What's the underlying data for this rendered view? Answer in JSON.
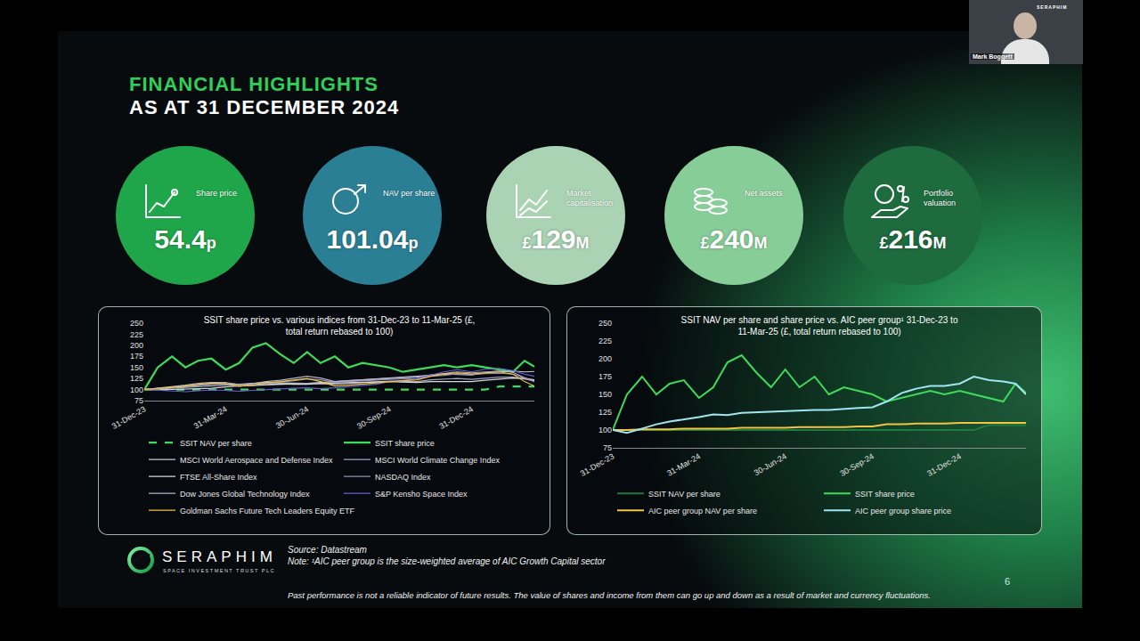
{
  "presenter": {
    "name": "Mark Boggett",
    "logo": "SERAPHIM"
  },
  "header": {
    "title": "FINANCIAL HIGHLIGHTS",
    "subtitle": "AS AT 31 DECEMBER 2024"
  },
  "kpis": [
    {
      "label": "Share price",
      "value": 54.4,
      "suffix": "p",
      "color": "#1fa64a"
    },
    {
      "label": "NAV per share",
      "value": 101.04,
      "suffix": "p",
      "color": "#2a7f95"
    },
    {
      "label": "Market capitalisation",
      "value": 129,
      "prefix": "£",
      "suffix": "M",
      "color": "#a9d3b3"
    },
    {
      "label": "Net assets",
      "value": 240,
      "prefix": "£",
      "suffix": "M",
      "color": "#86cd98"
    },
    {
      "label": "Portfolio valuation",
      "value": 216,
      "prefix": "£",
      "suffix": "M",
      "color": "#1e6b3e"
    }
  ],
  "chart_data": [
    {
      "type": "line",
      "title": "SSIT share price vs. various indices from 31-Dec-23 to 11-Mar-25 (£, total return rebased to 100)",
      "x": [
        "2023-12-31",
        "2024-01-15",
        "2024-01-31",
        "2024-02-15",
        "2024-02-29",
        "2024-03-15",
        "2024-03-31",
        "2024-04-15",
        "2024-04-30",
        "2024-05-15",
        "2024-05-31",
        "2024-06-15",
        "2024-06-30",
        "2024-07-15",
        "2024-07-31",
        "2024-08-15",
        "2024-08-31",
        "2024-09-15",
        "2024-09-30",
        "2024-10-15",
        "2024-10-31",
        "2024-11-15",
        "2024-11-30",
        "2024-12-15",
        "2024-12-31",
        "2025-01-15",
        "2025-01-31",
        "2025-02-15",
        "2025-02-28",
        "2025-03-11"
      ],
      "xlim": [
        "2023-12-31",
        "2025-03-11"
      ],
      "xticks": [
        {
          "value": "2023-12-31",
          "label": "31-Dec-23"
        },
        {
          "value": "2024-03-31",
          "label": "31-Mar-24"
        },
        {
          "value": "2024-06-30",
          "label": "30-Jun-24"
        },
        {
          "value": "2024-09-30",
          "label": "30-Sep-24"
        },
        {
          "value": "2024-12-31",
          "label": "31-Dec-24"
        }
      ],
      "ylim": [
        75,
        250
      ],
      "yticks": [
        75,
        100,
        125,
        150,
        175,
        200,
        225,
        250
      ],
      "grid": false,
      "legend": "bottom",
      "series": [
        {
          "name": "SSIT NAV per share",
          "color": "#3ddc5a",
          "line_style": "dashed",
          "values": [
            100,
            100,
            100,
            100,
            100,
            100,
            100,
            100,
            100,
            100,
            100,
            100,
            100,
            100,
            100,
            100,
            100,
            100,
            100,
            100,
            100,
            100,
            100,
            100,
            100,
            100,
            107,
            107,
            107,
            107
          ]
        },
        {
          "name": "SSIT share price",
          "color": "#3ddc5a",
          "line_style": "solid",
          "values": [
            100,
            150,
            175,
            150,
            165,
            170,
            145,
            160,
            195,
            205,
            180,
            160,
            185,
            160,
            175,
            150,
            160,
            155,
            150,
            140,
            145,
            150,
            155,
            150,
            155,
            150,
            145,
            140,
            165,
            152
          ]
        },
        {
          "name": "MSCI World Aerospace and Defense Index",
          "color": "#c9c9d9",
          "line_style": "solid",
          "values": [
            100,
            103,
            105,
            107,
            110,
            112,
            113,
            112,
            114,
            116,
            115,
            114,
            114,
            116,
            118,
            120,
            122,
            124,
            126,
            128,
            130,
            132,
            135,
            134,
            133,
            138,
            140,
            142,
            140,
            141
          ]
        },
        {
          "name": "MSCI World Climate Change Index",
          "color": "#a3a3c4",
          "line_style": "solid",
          "values": [
            100,
            101,
            103,
            105,
            107,
            109,
            110,
            108,
            109,
            111,
            112,
            113,
            114,
            113,
            112,
            114,
            116,
            117,
            119,
            118,
            118,
            122,
            124,
            125,
            123,
            126,
            128,
            128,
            124,
            120
          ]
        },
        {
          "name": "FTSE All-Share Index",
          "color": "#d8d8d8",
          "line_style": "solid",
          "values": [
            100,
            99,
            100,
            101,
            101,
            103,
            106,
            108,
            110,
            112,
            113,
            112,
            112,
            114,
            115,
            116,
            117,
            117,
            118,
            117,
            116,
            118,
            118,
            119,
            118,
            121,
            124,
            126,
            125,
            122
          ]
        },
        {
          "name": "NASDAQ Index",
          "color": "#8f8fb3",
          "line_style": "solid",
          "values": [
            100,
            102,
            105,
            108,
            110,
            112,
            112,
            108,
            110,
            114,
            117,
            120,
            124,
            122,
            116,
            118,
            120,
            121,
            123,
            124,
            125,
            130,
            132,
            136,
            134,
            136,
            137,
            135,
            125,
            118
          ]
        },
        {
          "name": "Dow Jones Global Technology Index",
          "color": "#b4b4cc",
          "line_style": "solid",
          "values": [
            100,
            103,
            107,
            110,
            114,
            116,
            116,
            111,
            113,
            118,
            121,
            125,
            130,
            126,
            118,
            120,
            122,
            123,
            126,
            127,
            128,
            133,
            136,
            140,
            138,
            140,
            142,
            139,
            127,
            120
          ]
        },
        {
          "name": "S&P Kensho Space Index",
          "color": "#6a5fd6",
          "line_style": "solid",
          "values": [
            100,
            98,
            96,
            95,
            97,
            99,
            98,
            96,
            98,
            100,
            101,
            103,
            104,
            102,
            104,
            107,
            110,
            112,
            118,
            120,
            125,
            132,
            140,
            145,
            140,
            146,
            148,
            143,
            135,
            130
          ]
        },
        {
          "name": "Goldman Sachs Future Tech Leaders Equity ETF",
          "color": "#f2c443",
          "line_style": "solid",
          "values": [
            100,
            102,
            105,
            108,
            112,
            115,
            113,
            108,
            110,
            115,
            118,
            122,
            125,
            118,
            108,
            110,
            112,
            115,
            118,
            120,
            122,
            130,
            135,
            138,
            135,
            138,
            140,
            135,
            118,
            108
          ]
        }
      ]
    },
    {
      "type": "line",
      "title": "SSIT NAV per share and share price vs. AIC peer group¹ 31-Dec-23 to 11-Mar-25 (£, total return rebased to 100)",
      "x": [
        "2023-12-31",
        "2024-01-15",
        "2024-01-31",
        "2024-02-15",
        "2024-02-29",
        "2024-03-15",
        "2024-03-31",
        "2024-04-15",
        "2024-04-30",
        "2024-05-15",
        "2024-05-31",
        "2024-06-15",
        "2024-06-30",
        "2024-07-15",
        "2024-07-31",
        "2024-08-15",
        "2024-08-31",
        "2024-09-15",
        "2024-09-30",
        "2024-10-15",
        "2024-10-31",
        "2024-11-15",
        "2024-11-30",
        "2024-12-15",
        "2024-12-31",
        "2025-01-15",
        "2025-01-31",
        "2025-02-15",
        "2025-02-28",
        "2025-03-11"
      ],
      "xlim": [
        "2023-12-31",
        "2025-03-11"
      ],
      "xticks": [
        {
          "value": "2023-12-31",
          "label": "31-Dec-23"
        },
        {
          "value": "2024-03-31",
          "label": "31-Mar-24"
        },
        {
          "value": "2024-06-30",
          "label": "30-Jun-24"
        },
        {
          "value": "2024-09-30",
          "label": "30-Sep-24"
        },
        {
          "value": "2024-12-31",
          "label": "31-Dec-24"
        }
      ],
      "ylim": [
        75,
        250
      ],
      "yticks": [
        75,
        100,
        125,
        150,
        175,
        200,
        225,
        250
      ],
      "grid": false,
      "legend": "bottom",
      "series": [
        {
          "name": "SSIT NAV per share",
          "color": "#1f7a3c",
          "line_style": "solid",
          "values": [
            100,
            100,
            100,
            100,
            100,
            100,
            100,
            100,
            100,
            100,
            100,
            100,
            100,
            100,
            100,
            100,
            100,
            100,
            100,
            100,
            100,
            100,
            100,
            100,
            100,
            100,
            107,
            107,
            107,
            107
          ]
        },
        {
          "name": "SSIT share price",
          "color": "#3ddc5a",
          "line_style": "solid",
          "values": [
            100,
            150,
            175,
            150,
            165,
            170,
            145,
            160,
            195,
            205,
            180,
            160,
            185,
            160,
            175,
            150,
            160,
            155,
            150,
            140,
            145,
            150,
            155,
            150,
            155,
            150,
            145,
            140,
            165,
            152
          ]
        },
        {
          "name": "AIC peer group NAV per share",
          "color": "#f2c443",
          "line_style": "solid",
          "values": [
            100,
            100,
            101,
            101,
            101,
            102,
            102,
            102,
            102,
            103,
            103,
            103,
            103,
            104,
            104,
            104,
            104,
            105,
            105,
            108,
            108,
            109,
            109,
            109,
            110,
            110,
            110,
            110,
            110,
            110
          ]
        },
        {
          "name": "AIC peer group share price",
          "color": "#9fe6f2",
          "line_style": "solid",
          "values": [
            100,
            96,
            102,
            108,
            112,
            115,
            118,
            122,
            121,
            124,
            125,
            125,
            126,
            127,
            128,
            128,
            130,
            131,
            132,
            140,
            152,
            158,
            162,
            162,
            165,
            175,
            170,
            168,
            165,
            150
          ]
        }
      ]
    }
  ],
  "footer": {
    "logo": "SERAPHIM",
    "logo_subtitle": "SPACE INVESTMENT TRUST PLC",
    "source": "Source: Datastream",
    "note": "Note: ¹AIC peer group is the size-weighted average of AIC Growth Capital sector",
    "disclaimer": "Past performance is not a reliable indicator of future results. The value of shares and income from them can go up and down as a result of market and currency fluctuations.",
    "page": 6
  }
}
